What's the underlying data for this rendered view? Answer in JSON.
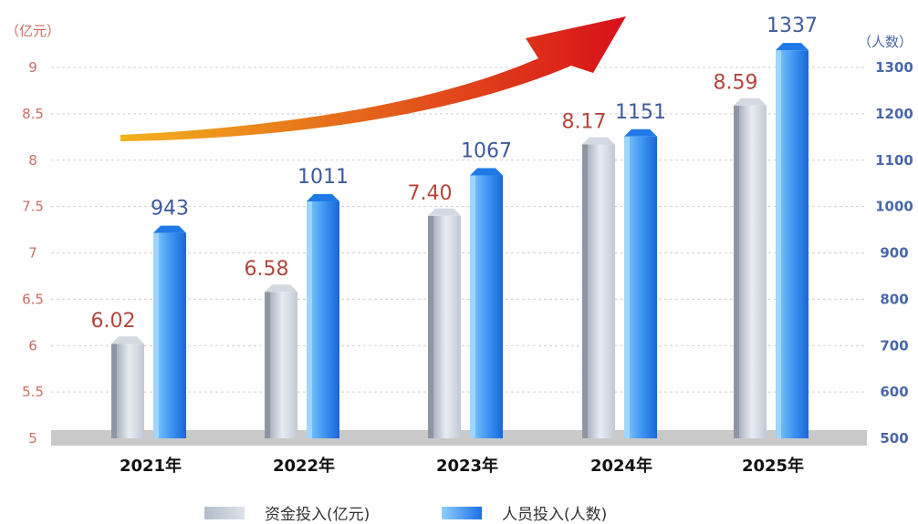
{
  "colors": {
    "funds_bar": "#c7ced9",
    "funds_shadow": "#8e96a4",
    "staff_bar": "#1f7ae8",
    "staff_light": "#9fd5ff",
    "funds_label": "#b4453b",
    "staff_label": "#3d5a9c",
    "baseline": "#c9c9c9",
    "arrow_start": "#f2b21c",
    "arrow_end": "#d8101a"
  },
  "chart_data": {
    "type": "bar",
    "categories": [
      "2021年",
      "2022年",
      "2023年",
      "2024年",
      "2025年"
    ],
    "series": [
      {
        "name": "资金投入(亿元)",
        "axis": "left",
        "values": [
          6.02,
          6.58,
          7.4,
          8.17,
          8.59
        ],
        "labels": [
          "6.02",
          "6.58",
          "7.40",
          "8.17",
          "8.59"
        ]
      },
      {
        "name": "人员投入(人数)",
        "axis": "right",
        "values": [
          943,
          1011,
          1067,
          1151,
          1337
        ],
        "labels": [
          "943",
          "1011",
          "1067",
          "1151",
          "1337"
        ]
      }
    ],
    "y_left": {
      "unit": "（亿元）",
      "range": [
        5,
        9
      ],
      "ticks": [
        "9",
        "8.5",
        "8",
        "7.5",
        "7",
        "6.5",
        "6",
        "5.5",
        "5"
      ]
    },
    "y_right": {
      "unit": "（人数）",
      "range": [
        500,
        1300
      ],
      "ticks": [
        "1300",
        "1200",
        "1100",
        "1000",
        "900",
        "800",
        "700",
        "600",
        "500"
      ]
    },
    "grid": true,
    "legend_position": "bottom-center",
    "decoration": "rising arrow"
  }
}
